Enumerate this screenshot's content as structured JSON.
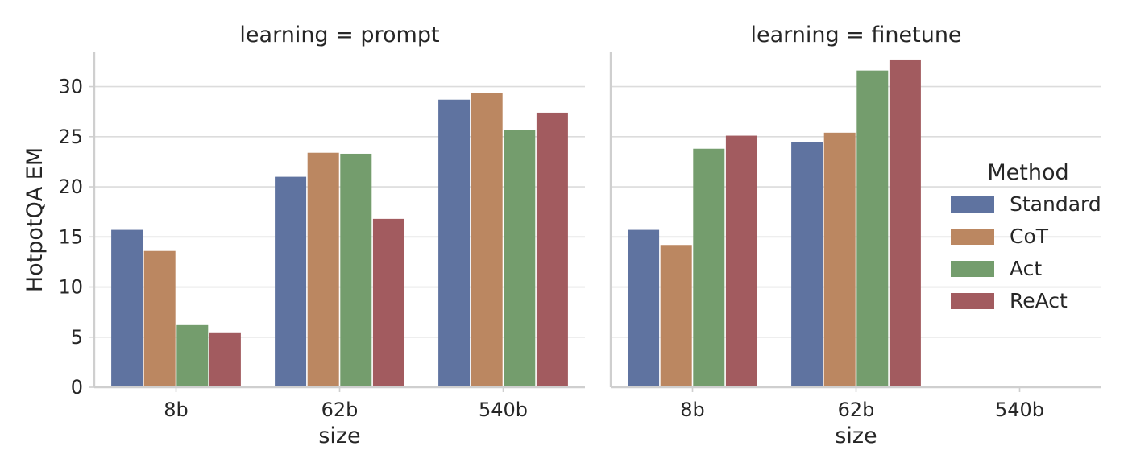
{
  "chart_data": {
    "type": "bar",
    "ylabel": "HotpotQA EM",
    "xlabel": "size",
    "ylim": [
      0,
      33.5
    ],
    "yticks": [
      0,
      5,
      10,
      15,
      20,
      25,
      30
    ],
    "categories": [
      "8b",
      "62b",
      "540b"
    ],
    "grid": true,
    "legend": {
      "title": "Method",
      "placement": "right",
      "items": [
        {
          "name": "Standard",
          "color": "#5f73a0"
        },
        {
          "name": "CoT",
          "color": "#bb8761"
        },
        {
          "name": "Act",
          "color": "#749d6d"
        },
        {
          "name": "ReAct",
          "color": "#a25b5f"
        }
      ]
    },
    "panels": [
      {
        "title": "learning = prompt",
        "series": [
          {
            "name": "Standard",
            "values": [
              15.7,
              21.0,
              28.7
            ]
          },
          {
            "name": "CoT",
            "values": [
              13.6,
              23.4,
              29.4
            ]
          },
          {
            "name": "Act",
            "values": [
              6.2,
              23.3,
              25.7
            ]
          },
          {
            "name": "ReAct",
            "values": [
              5.4,
              16.8,
              27.4
            ]
          }
        ]
      },
      {
        "title": "learning = finetune",
        "series": [
          {
            "name": "Standard",
            "values": [
              15.7,
              24.5,
              null
            ]
          },
          {
            "name": "CoT",
            "values": [
              14.2,
              25.4,
              null
            ]
          },
          {
            "name": "Act",
            "values": [
              23.8,
              31.6,
              null
            ]
          },
          {
            "name": "ReAct",
            "values": [
              25.1,
              32.7,
              null
            ]
          }
        ]
      }
    ]
  }
}
